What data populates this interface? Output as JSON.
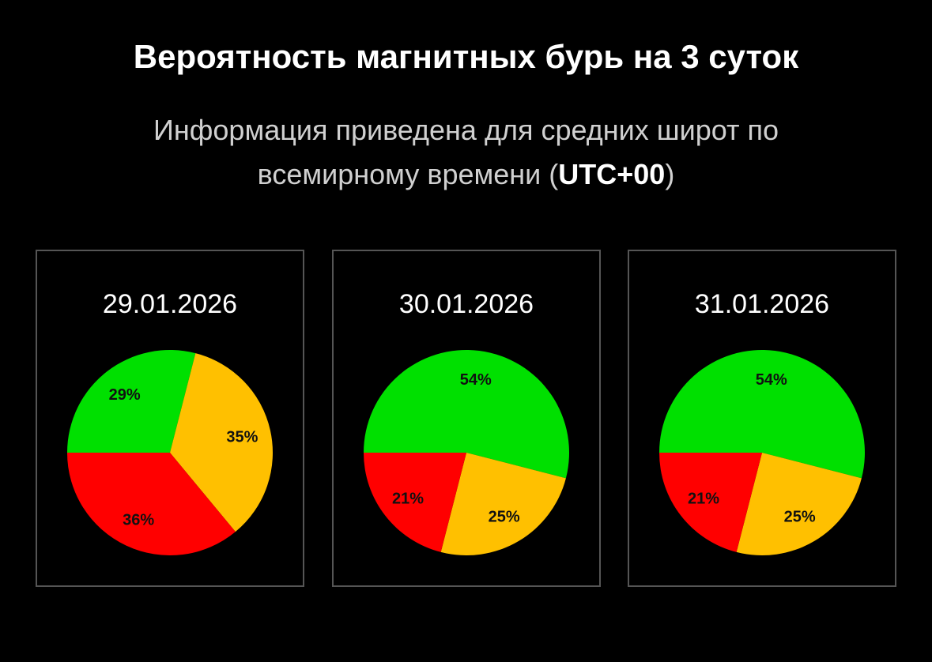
{
  "header": {
    "title": "Вероятность магнитных бурь на 3 суток",
    "subtitle_line1": "Информация приведена для средних широт по",
    "subtitle_line2_prefix": "всемирному времени (",
    "subtitle_line2_bold": "UTC+00",
    "subtitle_line2_suffix": ")"
  },
  "colors": {
    "green": "#00e000",
    "yellow": "#ffc000",
    "red": "#ff0000",
    "border": "#555555"
  },
  "chart_data": [
    {
      "type": "pie",
      "title": "29.01.2026",
      "categories": [
        "green",
        "yellow",
        "red"
      ],
      "values": [
        29,
        35,
        36
      ],
      "labels": [
        "29%",
        "35%",
        "36%"
      ],
      "start_angle": "left (9 o'clock), clockwise"
    },
    {
      "type": "pie",
      "title": "30.01.2026",
      "categories": [
        "green",
        "yellow",
        "red"
      ],
      "values": [
        54,
        25,
        21
      ],
      "labels": [
        "54%",
        "25%",
        "21%"
      ],
      "start_angle": "left (9 o'clock), clockwise"
    },
    {
      "type": "pie",
      "title": "31.01.2026",
      "categories": [
        "green",
        "yellow",
        "red"
      ],
      "values": [
        54,
        25,
        21
      ],
      "labels": [
        "54%",
        "25%",
        "21%"
      ],
      "start_angle": "left (9 o'clock), clockwise"
    }
  ]
}
